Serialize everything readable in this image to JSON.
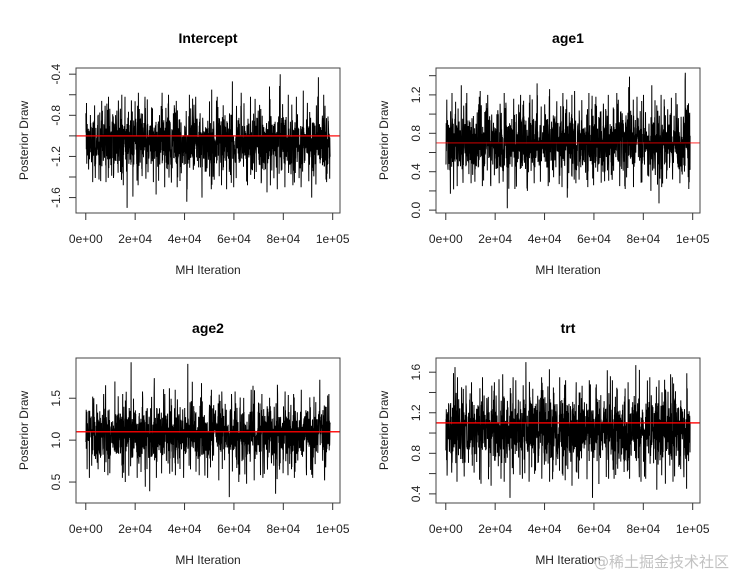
{
  "figure": {
    "watermark": "@稀土掘金技术社区"
  },
  "chart_data": [
    {
      "type": "line",
      "title": "Intercept",
      "xlabel": "MH Iteration",
      "ylabel": "Posterior Draw",
      "grid": false,
      "legend": "none",
      "xlim": [
        -3960,
        102960
      ],
      "ylim": [
        -1.75,
        -0.34
      ],
      "xticks": {
        "values": [
          0,
          20000,
          40000,
          60000,
          80000,
          100000
        ],
        "labels": [
          "0e+00",
          "2e+04",
          "4e+04",
          "6e+04",
          "8e+04",
          "1e+05"
        ]
      },
      "yticks": {
        "values": [
          -1.6,
          -1.4,
          -1.2,
          -1.0,
          -0.8,
          -0.6,
          -0.4
        ],
        "labels": [
          "-1.6",
          "",
          "-1.2",
          "",
          "-0.8",
          "",
          "-0.4"
        ]
      },
      "reference_line": {
        "value": -1.0,
        "color": "#ff0000"
      },
      "trace": {
        "color": "#000000",
        "iterations": [
          1,
          99000
        ],
        "center": -1.06,
        "sd": 0.15,
        "bin_width": 3960,
        "upper_envelope": [
          -0.68,
          -0.66,
          -0.62,
          -0.6,
          -0.62,
          -0.58,
          -0.62,
          -0.58,
          -0.6,
          -0.66,
          -0.6,
          -0.62,
          -0.55,
          -0.62,
          -0.47,
          -0.58,
          -0.62,
          -0.64,
          -0.52,
          -0.4,
          -0.6,
          -0.62,
          -0.56,
          -0.43,
          -0.6
        ],
        "lower_envelope": [
          -1.45,
          -1.44,
          -1.45,
          -1.48,
          -1.7,
          -1.48,
          -1.45,
          -1.57,
          -1.5,
          -1.5,
          -1.64,
          -1.6,
          -1.52,
          -1.48,
          -1.52,
          -1.5,
          -1.48,
          -1.46,
          -1.55,
          -1.52,
          -1.5,
          -1.48,
          -1.5,
          -1.6,
          -1.45
        ]
      }
    },
    {
      "type": "line",
      "title": "age1",
      "xlabel": "MH Iteration",
      "ylabel": "Posterior Draw",
      "grid": false,
      "legend": "none",
      "xlim": [
        -3960,
        102960
      ],
      "ylim": [
        -0.03,
        1.48
      ],
      "xticks": {
        "values": [
          0,
          20000,
          40000,
          60000,
          80000,
          100000
        ],
        "labels": [
          "0e+00",
          "2e+04",
          "4e+04",
          "6e+04",
          "8e+04",
          "1e+05"
        ]
      },
      "yticks": {
        "values": [
          0.0,
          0.2,
          0.4,
          0.6,
          0.8,
          1.0,
          1.2,
          1.4
        ],
        "labels": [
          "0.0",
          "",
          "0.4",
          "",
          "0.8",
          "",
          "1.2",
          ""
        ]
      },
      "reference_line": {
        "value": 0.7,
        "color": "#ff0000"
      },
      "trace": {
        "color": "#000000",
        "iterations": [
          1,
          99000
        ],
        "center": 0.71,
        "sd": 0.17,
        "bin_width": 3960,
        "upper_envelope": [
          1.22,
          1.3,
          1.22,
          1.24,
          1.2,
          1.22,
          1.16,
          1.2,
          1.2,
          1.32,
          1.26,
          1.22,
          1.2,
          1.24,
          1.22,
          1.18,
          1.2,
          1.22,
          1.39,
          1.18,
          1.2,
          1.3,
          1.2,
          1.22,
          1.43
        ],
        "lower_envelope": [
          0.17,
          0.25,
          0.28,
          0.25,
          0.25,
          0.28,
          0.02,
          0.22,
          0.2,
          0.28,
          0.25,
          0.24,
          0.13,
          0.28,
          0.24,
          0.26,
          0.3,
          0.25,
          0.22,
          0.24,
          0.2,
          0.07,
          0.24,
          0.28,
          0.22
        ]
      }
    },
    {
      "type": "line",
      "title": "age2",
      "xlabel": "MH Iteration",
      "ylabel": "Posterior Draw",
      "grid": false,
      "legend": "none",
      "xlim": [
        -3960,
        102960
      ],
      "ylim": [
        0.25,
        1.98
      ],
      "xticks": {
        "values": [
          0,
          20000,
          40000,
          60000,
          80000,
          100000
        ],
        "labels": [
          "0e+00",
          "2e+04",
          "4e+04",
          "6e+04",
          "8e+04",
          "1e+05"
        ]
      },
      "yticks": {
        "values": [
          0.5,
          1.0,
          1.5
        ],
        "labels": [
          "0.5",
          "1.0",
          "1.5"
        ]
      },
      "reference_line": {
        "value": 1.1,
        "color": "#ff0000"
      },
      "trace": {
        "color": "#000000",
        "iterations": [
          1,
          99000
        ],
        "center": 1.07,
        "sd": 0.18,
        "bin_width": 3960,
        "upper_envelope": [
          1.52,
          1.55,
          1.7,
          1.55,
          1.93,
          1.58,
          1.55,
          1.74,
          1.62,
          1.6,
          1.91,
          1.68,
          1.6,
          1.58,
          1.55,
          1.58,
          1.6,
          1.65,
          1.55,
          1.66,
          1.58,
          1.55,
          1.6,
          1.72,
          1.55
        ],
        "lower_envelope": [
          0.55,
          0.62,
          0.58,
          0.55,
          0.5,
          0.55,
          0.39,
          0.55,
          0.6,
          0.58,
          0.55,
          0.58,
          0.55,
          0.52,
          0.32,
          0.5,
          0.48,
          0.52,
          0.55,
          0.36,
          0.58,
          0.55,
          0.58,
          0.55,
          0.52
        ]
      }
    },
    {
      "type": "line",
      "title": "trt",
      "xlabel": "MH Iteration",
      "ylabel": "Posterior Draw",
      "grid": false,
      "legend": "none",
      "xlim": [
        -3960,
        102960
      ],
      "ylim": [
        0.31,
        1.74
      ],
      "xticks": {
        "values": [
          0,
          20000,
          40000,
          60000,
          80000,
          100000
        ],
        "labels": [
          "0e+00",
          "2e+04",
          "4e+04",
          "6e+04",
          "8e+04",
          "1e+05"
        ]
      },
      "yticks": {
        "values": [
          0.4,
          0.6,
          0.8,
          1.0,
          1.2,
          1.4,
          1.6
        ],
        "labels": [
          "0.4",
          "",
          "0.8",
          "",
          "1.2",
          "",
          "1.6"
        ]
      },
      "reference_line": {
        "value": 1.1,
        "color": "#ff0000"
      },
      "trace": {
        "color": "#000000",
        "iterations": [
          1,
          99000
        ],
        "center": 1.03,
        "sd": 0.175,
        "bin_width": 3960,
        "upper_envelope": [
          1.65,
          1.55,
          1.5,
          1.55,
          1.5,
          1.58,
          1.55,
          1.52,
          1.7,
          1.55,
          1.63,
          1.55,
          1.52,
          1.5,
          1.52,
          1.48,
          1.62,
          1.52,
          1.5,
          1.67,
          1.55,
          1.52,
          1.58,
          1.55,
          1.59
        ],
        "lower_envelope": [
          0.58,
          0.52,
          0.55,
          0.5,
          0.48,
          0.52,
          0.36,
          0.55,
          0.52,
          0.55,
          0.52,
          0.58,
          0.48,
          0.55,
          0.52,
          0.36,
          0.55,
          0.55,
          0.55,
          0.52,
          0.55,
          0.44,
          0.5,
          0.52,
          0.45
        ]
      }
    }
  ]
}
